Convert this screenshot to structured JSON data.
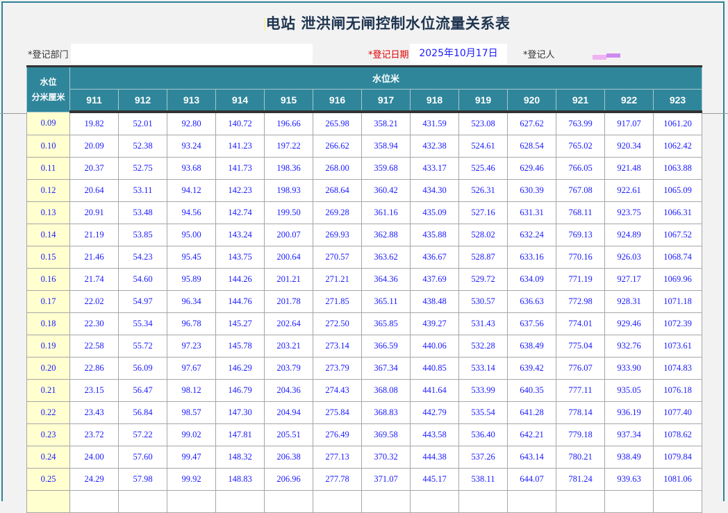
{
  "title": "电站  泄洪闸无闸控制水位流量关系表",
  "form": {
    "dept_label": "*登记部门",
    "dept_value": "",
    "date_label": "*登记日期",
    "date_value": "2025年10月17日",
    "person_label": "*登记人"
  },
  "colors": {
    "header_bg": "#2f869b",
    "level_col_bg": "#ffffd0",
    "value_text": "#1a1aff",
    "required_label": "#e00000"
  },
  "table": {
    "corner_line1": "水位",
    "corner_line2": "分米厘米",
    "group_header": "水位米",
    "columns": [
      "911",
      "912",
      "913",
      "914",
      "915",
      "916",
      "917",
      "918",
      "919",
      "920",
      "921",
      "922",
      "923"
    ],
    "rows": [
      {
        "level": "0.09",
        "values": [
          "19.82",
          "52.01",
          "92.80",
          "140.72",
          "196.66",
          "265.98",
          "358.21",
          "431.59",
          "523.08",
          "627.62",
          "763.99",
          "917.07",
          "1061.20"
        ]
      },
      {
        "level": "0.10",
        "values": [
          "20.09",
          "52.38",
          "93.24",
          "141.23",
          "197.22",
          "266.62",
          "358.94",
          "432.38",
          "524.61",
          "628.54",
          "765.02",
          "920.34",
          "1062.42"
        ]
      },
      {
        "level": "0.11",
        "values": [
          "20.37",
          "52.75",
          "93.68",
          "141.73",
          "198.36",
          "268.00",
          "359.68",
          "433.17",
          "525.46",
          "629.46",
          "766.05",
          "921.48",
          "1063.88"
        ]
      },
      {
        "level": "0.12",
        "values": [
          "20.64",
          "53.11",
          "94.12",
          "142.23",
          "198.93",
          "268.64",
          "360.42",
          "434.30",
          "526.31",
          "630.39",
          "767.08",
          "922.61",
          "1065.09"
        ]
      },
      {
        "level": "0.13",
        "values": [
          "20.91",
          "53.48",
          "94.56",
          "142.74",
          "199.50",
          "269.28",
          "361.16",
          "435.09",
          "527.16",
          "631.31",
          "768.11",
          "923.75",
          "1066.31"
        ]
      },
      {
        "level": "0.14",
        "values": [
          "21.19",
          "53.85",
          "95.00",
          "143.24",
          "200.07",
          "269.93",
          "362.88",
          "435.88",
          "528.02",
          "632.24",
          "769.13",
          "924.89",
          "1067.52"
        ]
      },
      {
        "level": "0.15",
        "values": [
          "21.46",
          "54.23",
          "95.45",
          "143.75",
          "200.64",
          "270.57",
          "363.62",
          "436.67",
          "528.87",
          "633.16",
          "770.16",
          "926.03",
          "1068.74"
        ]
      },
      {
        "level": "0.16",
        "values": [
          "21.74",
          "54.60",
          "95.89",
          "144.26",
          "201.21",
          "271.21",
          "364.36",
          "437.69",
          "529.72",
          "634.09",
          "771.19",
          "927.17",
          "1069.96"
        ]
      },
      {
        "level": "0.17",
        "values": [
          "22.02",
          "54.97",
          "96.34",
          "144.76",
          "201.78",
          "271.85",
          "365.11",
          "438.48",
          "530.57",
          "636.63",
          "772.98",
          "928.31",
          "1071.18"
        ]
      },
      {
        "level": "0.18",
        "values": [
          "22.30",
          "55.34",
          "96.78",
          "145.27",
          "202.64",
          "272.50",
          "365.85",
          "439.27",
          "531.43",
          "637.56",
          "774.01",
          "929.46",
          "1072.39"
        ]
      },
      {
        "level": "0.19",
        "values": [
          "22.58",
          "55.72",
          "97.23",
          "145.78",
          "203.21",
          "273.14",
          "366.59",
          "440.06",
          "532.28",
          "638.49",
          "775.04",
          "932.76",
          "1073.61"
        ]
      },
      {
        "level": "0.20",
        "values": [
          "22.86",
          "56.09",
          "97.67",
          "146.29",
          "203.79",
          "273.79",
          "367.34",
          "440.85",
          "533.14",
          "639.42",
          "776.07",
          "933.90",
          "1074.83"
        ]
      },
      {
        "level": "0.21",
        "values": [
          "23.15",
          "56.47",
          "98.12",
          "146.79",
          "204.36",
          "274.43",
          "368.08",
          "441.64",
          "533.99",
          "640.35",
          "777.11",
          "935.05",
          "1076.18"
        ]
      },
      {
        "level": "0.22",
        "values": [
          "23.43",
          "56.84",
          "98.57",
          "147.30",
          "204.94",
          "275.84",
          "368.83",
          "442.79",
          "535.54",
          "641.28",
          "778.14",
          "936.19",
          "1077.40"
        ]
      },
      {
        "level": "0.23",
        "values": [
          "23.72",
          "57.22",
          "99.02",
          "147.81",
          "205.51",
          "276.49",
          "369.58",
          "443.58",
          "536.40",
          "642.21",
          "779.18",
          "937.34",
          "1078.62"
        ]
      },
      {
        "level": "0.24",
        "values": [
          "24.00",
          "57.60",
          "99.47",
          "148.32",
          "206.38",
          "277.13",
          "370.32",
          "444.38",
          "537.26",
          "643.14",
          "780.21",
          "938.49",
          "1079.84"
        ]
      },
      {
        "level": "0.25",
        "values": [
          "24.29",
          "57.98",
          "99.92",
          "148.83",
          "206.96",
          "277.78",
          "371.07",
          "445.17",
          "538.11",
          "644.07",
          "781.24",
          "939.63",
          "1081.06"
        ]
      },
      {
        "level": "",
        "values": [
          "",
          "",
          "",
          "",
          "",
          "",
          "",
          "",
          "",
          "",
          "",
          "",
          ""
        ]
      }
    ]
  }
}
